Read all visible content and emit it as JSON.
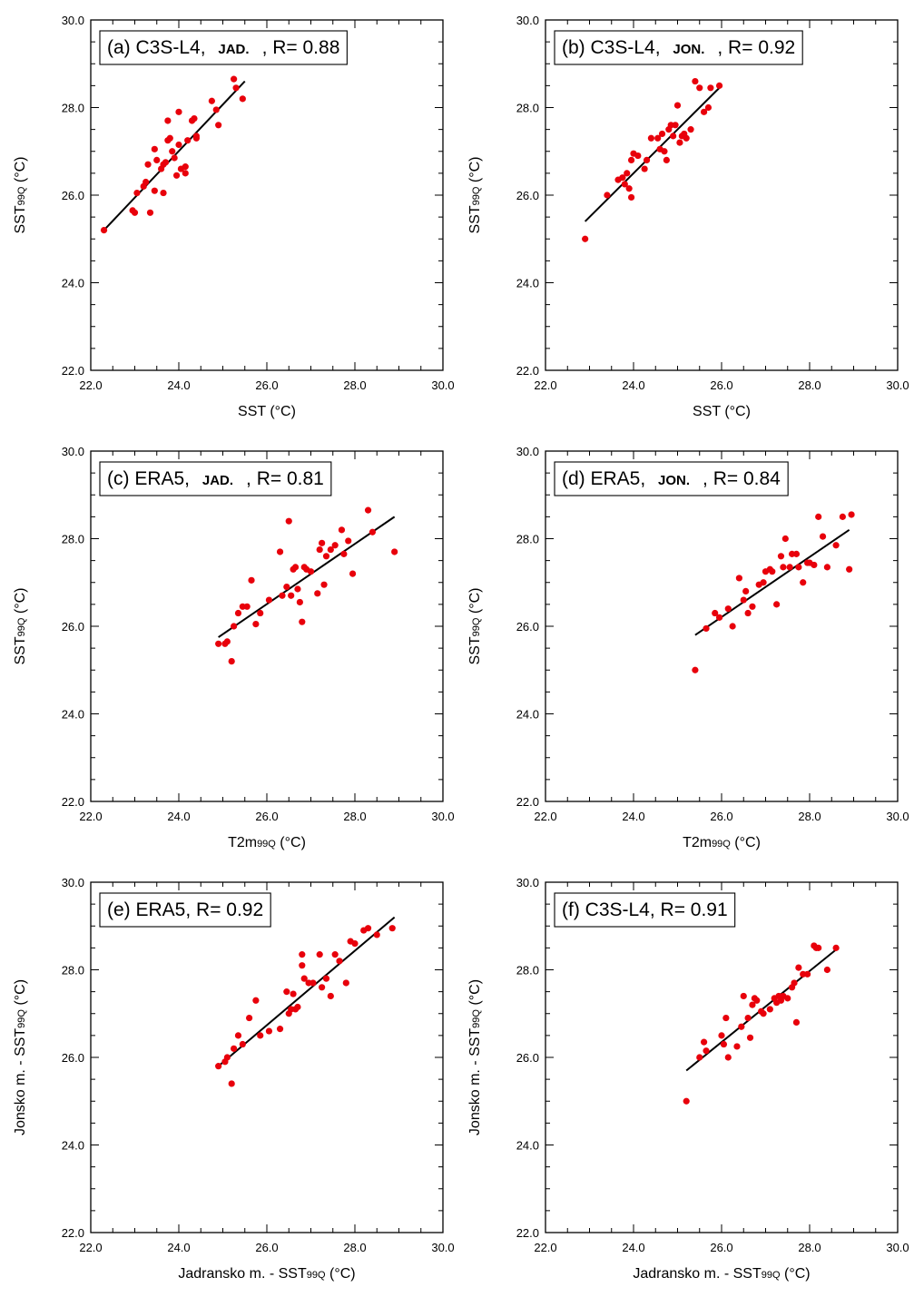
{
  "colors": {
    "point": "#e8000b",
    "fit_line": "#000000",
    "axes": "#000000",
    "background": "#ffffff"
  },
  "chart_data": [
    {
      "panel": "a",
      "type": "scatter",
      "title": "(a) C3S-L4, ",
      "region": "JAD.",
      "r_text": ", R= 0.88",
      "xlabel": "SST (°C)",
      "ylabel_main": "SST",
      "ylabel_sub": "99Q",
      "ylabel_unit": " (°C)",
      "xlim": [
        22,
        30
      ],
      "ylim": [
        22,
        30
      ],
      "xticks": [
        "22.0",
        "24.0",
        "26.0",
        "28.0",
        "30.0"
      ],
      "yticks": [
        "22.0",
        "24.0",
        "26.0",
        "28.0",
        "30.0"
      ],
      "fit": {
        "x": [
          22.3,
          25.5
        ],
        "y": [
          25.2,
          28.6
        ]
      },
      "x": [
        22.3,
        23.0,
        22.95,
        23.05,
        23.2,
        23.3,
        23.25,
        23.45,
        23.5,
        23.45,
        23.6,
        23.65,
        23.7,
        23.75,
        23.75,
        23.8,
        23.85,
        23.9,
        23.95,
        24.0,
        24.0,
        24.05,
        24.15,
        24.15,
        24.2,
        24.3,
        24.35,
        24.4,
        24.4,
        24.75,
        24.85,
        24.9,
        25.25,
        25.3,
        25.45,
        23.35,
        23.65
      ],
      "y": [
        25.2,
        25.6,
        25.65,
        26.05,
        26.2,
        26.7,
        26.3,
        27.05,
        26.8,
        26.1,
        26.6,
        26.7,
        26.75,
        27.25,
        27.7,
        27.3,
        27.0,
        26.85,
        26.45,
        27.15,
        27.9,
        26.6,
        26.5,
        26.65,
        27.25,
        27.7,
        27.75,
        27.35,
        27.3,
        28.15,
        27.95,
        27.6,
        28.65,
        28.45,
        28.2,
        25.6,
        26.05
      ]
    },
    {
      "panel": "b",
      "type": "scatter",
      "title": "(b) C3S-L4, ",
      "region": "JON.",
      "r_text": ", R= 0.92",
      "xlabel": "SST (°C)",
      "ylabel_main": "SST",
      "ylabel_sub": "99Q",
      "ylabel_unit": " (°C)",
      "xlim": [
        22,
        30
      ],
      "ylim": [
        22,
        30
      ],
      "xticks": [
        "22.0",
        "24.0",
        "26.0",
        "28.0",
        "30.0"
      ],
      "yticks": [
        "22.0",
        "24.0",
        "26.0",
        "28.0",
        "30.0"
      ],
      "fit": {
        "x": [
          22.9,
          26.0
        ],
        "y": [
          25.4,
          28.5
        ]
      },
      "x": [
        22.9,
        23.4,
        23.65,
        23.75,
        23.8,
        23.85,
        23.9,
        23.95,
        23.95,
        24.0,
        24.1,
        24.25,
        24.3,
        24.4,
        24.55,
        24.6,
        24.65,
        24.7,
        24.75,
        24.8,
        24.85,
        24.9,
        24.95,
        25.0,
        25.05,
        25.1,
        25.15,
        25.2,
        25.3,
        25.4,
        25.5,
        25.6,
        25.7,
        25.75,
        25.95
      ],
      "y": [
        25.0,
        26.0,
        26.35,
        26.4,
        26.25,
        26.5,
        26.15,
        25.95,
        26.8,
        26.95,
        26.9,
        26.6,
        26.8,
        27.3,
        27.3,
        27.05,
        27.4,
        27.0,
        26.8,
        27.5,
        27.6,
        27.35,
        27.6,
        28.05,
        27.2,
        27.35,
        27.4,
        27.3,
        27.5,
        28.6,
        28.45,
        27.9,
        28.0,
        28.45,
        28.5
      ]
    },
    {
      "panel": "c",
      "type": "scatter",
      "title": "(c) ERA5, ",
      "region": "JAD.",
      "r_text": ", R= 0.81",
      "xlabel_main": "T2m",
      "xlabel_sub": "99Q",
      "xlabel_unit": " (°C)",
      "ylabel_main": "SST",
      "ylabel_sub": "99Q",
      "ylabel_unit": " (°C)",
      "xlim": [
        22,
        30
      ],
      "ylim": [
        22,
        30
      ],
      "xticks": [
        "22.0",
        "24.0",
        "26.0",
        "28.0",
        "30.0"
      ],
      "yticks": [
        "22.0",
        "24.0",
        "26.0",
        "28.0",
        "30.0"
      ],
      "fit": {
        "x": [
          24.9,
          28.9
        ],
        "y": [
          25.75,
          28.5
        ]
      },
      "x": [
        24.9,
        25.05,
        25.1,
        25.2,
        25.25,
        25.35,
        25.45,
        25.55,
        25.65,
        25.75,
        25.85,
        26.05,
        26.3,
        26.35,
        26.45,
        26.5,
        26.55,
        26.6,
        26.65,
        26.7,
        26.75,
        26.8,
        26.85,
        26.9,
        27.0,
        27.15,
        27.2,
        27.25,
        27.3,
        27.35,
        27.45,
        27.55,
        27.7,
        27.75,
        27.85,
        27.95,
        28.3,
        28.4,
        28.9
      ],
      "y": [
        25.6,
        25.6,
        25.65,
        25.2,
        26.0,
        26.3,
        26.45,
        26.45,
        27.05,
        26.05,
        26.3,
        26.6,
        27.7,
        26.7,
        26.9,
        28.4,
        26.7,
        27.3,
        27.35,
        26.85,
        26.55,
        26.1,
        27.35,
        27.3,
        27.25,
        26.75,
        27.75,
        27.9,
        26.95,
        27.6,
        27.75,
        27.85,
        28.2,
        27.65,
        27.95,
        27.2,
        28.65,
        28.15,
        27.7
      ]
    },
    {
      "panel": "d",
      "type": "scatter",
      "title": "(d) ERA5, ",
      "region": "JON.",
      "r_text": ", R= 0.84",
      "xlabel_main": "T2m",
      "xlabel_sub": "99Q",
      "xlabel_unit": " (°C)",
      "ylabel_main": "SST",
      "ylabel_sub": "99Q",
      "ylabel_unit": " (°C)",
      "xlim": [
        22,
        30
      ],
      "ylim": [
        22,
        30
      ],
      "xticks": [
        "22.0",
        "24.0",
        "26.0",
        "28.0",
        "30.0"
      ],
      "yticks": [
        "22.0",
        "24.0",
        "26.0",
        "28.0",
        "30.0"
      ],
      "fit": {
        "x": [
          25.4,
          28.9
        ],
        "y": [
          25.8,
          28.2
        ]
      },
      "x": [
        25.4,
        25.65,
        25.85,
        25.95,
        26.15,
        26.25,
        26.4,
        26.5,
        26.6,
        26.7,
        26.85,
        26.95,
        27.0,
        27.1,
        27.15,
        27.25,
        27.35,
        27.45,
        27.55,
        27.6,
        27.7,
        27.75,
        27.85,
        27.95,
        28.0,
        28.1,
        28.2,
        28.3,
        28.4,
        28.6,
        28.75,
        28.9,
        28.95,
        27.4,
        26.55
      ],
      "y": [
        25.0,
        25.95,
        26.3,
        26.2,
        26.4,
        26.0,
        27.1,
        26.6,
        26.3,
        26.45,
        26.95,
        27.0,
        27.25,
        27.3,
        27.25,
        26.5,
        27.6,
        28.0,
        27.35,
        27.65,
        27.65,
        27.35,
        27.0,
        27.45,
        27.45,
        27.4,
        28.5,
        28.05,
        27.35,
        27.85,
        28.5,
        27.3,
        28.55,
        27.35,
        26.8
      ]
    },
    {
      "panel": "e",
      "type": "scatter",
      "title": "(e) ERA5, R= 0.92",
      "xlabel_prefix": "Jadransko m. - SST",
      "xlabel_sub": "99Q",
      "xlabel_unit": " (°C)",
      "ylabel_prefix": "Jonsko m. - SST",
      "ylabel_sub": "99Q",
      "ylabel_unit": " (°C)",
      "xlim": [
        22,
        30
      ],
      "ylim": [
        22,
        30
      ],
      "xticks": [
        "22.0",
        "24.0",
        "26.0",
        "28.0",
        "30.0"
      ],
      "yticks": [
        "22.0",
        "24.0",
        "26.0",
        "28.0",
        "30.0"
      ],
      "fit": {
        "x": [
          24.9,
          28.9
        ],
        "y": [
          25.8,
          29.2
        ]
      },
      "x": [
        24.9,
        25.05,
        25.1,
        25.2,
        25.25,
        25.35,
        25.45,
        25.6,
        25.75,
        25.85,
        26.05,
        26.3,
        26.45,
        26.55,
        26.6,
        26.65,
        26.7,
        26.8,
        26.8,
        26.85,
        26.95,
        27.05,
        27.2,
        27.25,
        27.35,
        27.45,
        27.55,
        27.65,
        27.8,
        27.9,
        28.0,
        28.2,
        28.3,
        28.5,
        28.85,
        26.5
      ],
      "y": [
        25.8,
        25.9,
        26.0,
        25.4,
        26.2,
        26.5,
        26.3,
        26.9,
        27.3,
        26.5,
        26.6,
        26.65,
        27.5,
        27.1,
        27.45,
        27.1,
        27.15,
        28.35,
        28.1,
        27.8,
        27.7,
        27.7,
        28.35,
        27.6,
        27.8,
        27.4,
        28.35,
        28.2,
        27.7,
        28.65,
        28.6,
        28.9,
        28.95,
        28.8,
        28.95,
        27.0
      ]
    },
    {
      "panel": "f",
      "type": "scatter",
      "title": "(f) C3S-L4, R= 0.91",
      "xlabel_prefix": "Jadransko m. - SST",
      "xlabel_sub": "99Q",
      "xlabel_unit": " (°C)",
      "ylabel_prefix": "Jonsko m. - SST",
      "ylabel_sub": "99Q",
      "ylabel_unit": " (°C)",
      "xlim": [
        22,
        30
      ],
      "ylim": [
        22,
        30
      ],
      "xticks": [
        "22.0",
        "24.0",
        "26.0",
        "28.0",
        "30.0"
      ],
      "yticks": [
        "22.0",
        "24.0",
        "26.0",
        "28.0",
        "30.0"
      ],
      "fit": {
        "x": [
          25.2,
          28.65
        ],
        "y": [
          25.7,
          28.5
        ]
      },
      "x": [
        25.2,
        25.5,
        25.6,
        25.65,
        26.0,
        26.05,
        26.1,
        26.15,
        26.35,
        26.45,
        26.5,
        26.6,
        26.65,
        26.7,
        26.75,
        26.8,
        26.9,
        26.95,
        27.1,
        27.2,
        27.25,
        27.3,
        27.35,
        27.4,
        27.5,
        27.6,
        27.65,
        27.7,
        27.75,
        27.85,
        27.95,
        28.1,
        28.15,
        28.2,
        28.4,
        28.6
      ],
      "y": [
        25.0,
        26.0,
        26.35,
        26.15,
        26.5,
        26.3,
        26.9,
        26.0,
        26.25,
        26.7,
        27.4,
        26.9,
        26.45,
        27.2,
        27.35,
        27.3,
        27.05,
        27.0,
        27.1,
        27.35,
        27.25,
        27.4,
        27.3,
        27.4,
        27.35,
        27.6,
        27.7,
        26.8,
        28.05,
        27.9,
        27.9,
        28.55,
        28.5,
        28.5,
        28.0,
        28.5
      ]
    }
  ]
}
